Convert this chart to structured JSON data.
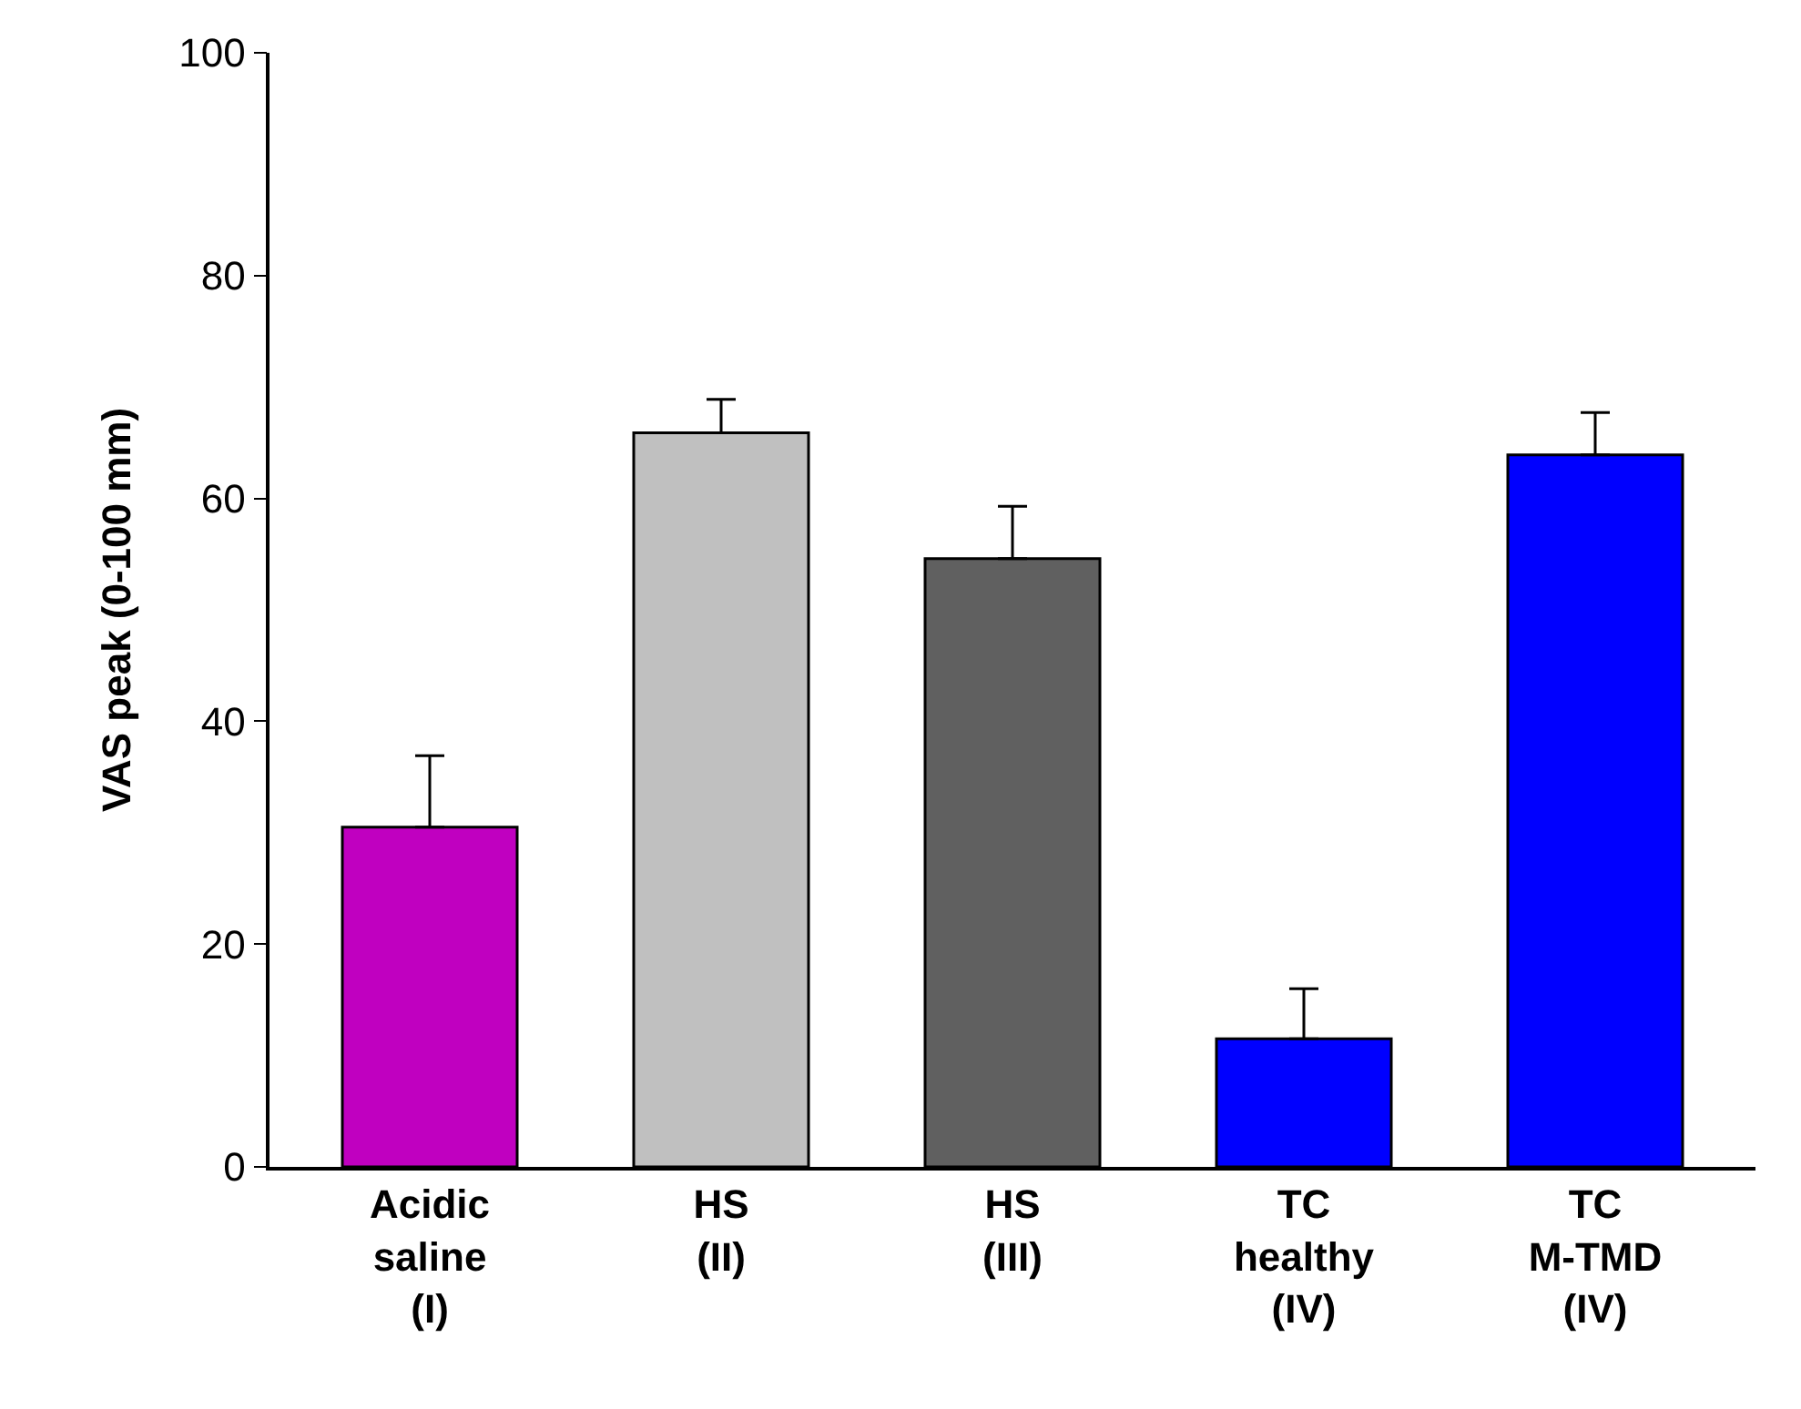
{
  "chart_data": {
    "type": "bar",
    "ylabel": "VAS peak (0-100 mm)",
    "categories": [
      "Acidic\nsaline\n(I)",
      "HS\n(II)",
      "HS\n(III)",
      "TC\nhealthy\n(IV)",
      "TC\nM-TMD\n(IV)"
    ],
    "values": [
      30.5,
      65.9,
      54.6,
      11.5,
      63.9
    ],
    "errors": [
      [
        30.5,
        36.9
      ],
      [
        65.9,
        68.9
      ],
      [
        54.6,
        59.3
      ],
      [
        11.5,
        16.0
      ],
      [
        63.9,
        67.7
      ]
    ],
    "colors": [
      "#c000c0",
      "#c0c0c0",
      "#606060",
      "#0000ff",
      "#0000ff"
    ],
    "ylim": [
      0,
      100
    ],
    "yticks": [
      0,
      20,
      40,
      60,
      80,
      100
    ],
    "grid": false
  }
}
